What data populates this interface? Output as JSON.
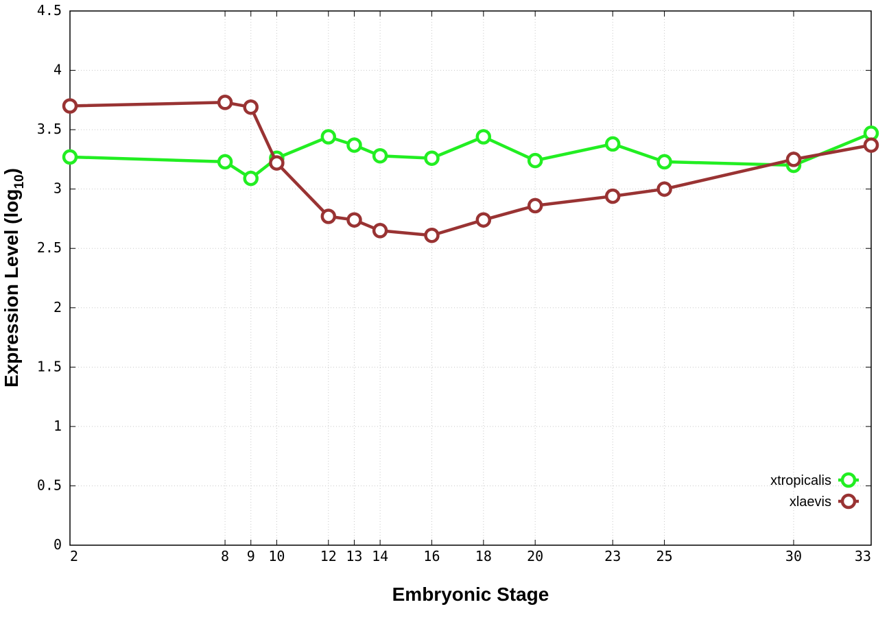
{
  "chart_data": {
    "type": "line",
    "xlabel": "Embryonic Stage",
    "ylabel_main": "Expression Level (log",
    "ylabel_sub": "10",
    "ylabel_close": ")",
    "x": [
      2,
      8,
      9,
      10,
      12,
      13,
      14,
      16,
      18,
      20,
      23,
      25,
      30,
      33
    ],
    "x_tick_labels": [
      "2",
      "8",
      "9",
      "10",
      "12",
      "13",
      "14",
      "16",
      "18",
      "20",
      "23",
      "25",
      "30",
      "33"
    ],
    "y_ticks": [
      0,
      0.5,
      1,
      1.5,
      2,
      2.5,
      3,
      3.5,
      4,
      4.5
    ],
    "y_tick_labels": [
      "0",
      "0.5",
      "1",
      "1.5",
      "2",
      "2.5",
      "3",
      "3.5",
      "4",
      "4.5"
    ],
    "xlim": [
      2,
      33
    ],
    "ylim": [
      0,
      4.5
    ],
    "grid": true,
    "legend_position": "bottom-right",
    "series": [
      {
        "name": "xtropicalis",
        "color": "#22ee22",
        "values": [
          3.27,
          3.23,
          3.09,
          3.26,
          3.44,
          3.37,
          3.28,
          3.26,
          3.44,
          3.24,
          3.38,
          3.23,
          3.2,
          3.47
        ]
      },
      {
        "name": "xlaevis",
        "color": "#993333",
        "values": [
          3.7,
          3.73,
          3.69,
          3.22,
          2.77,
          2.74,
          2.65,
          2.61,
          2.74,
          2.86,
          2.94,
          3.0,
          3.25,
          3.37
        ]
      }
    ]
  }
}
